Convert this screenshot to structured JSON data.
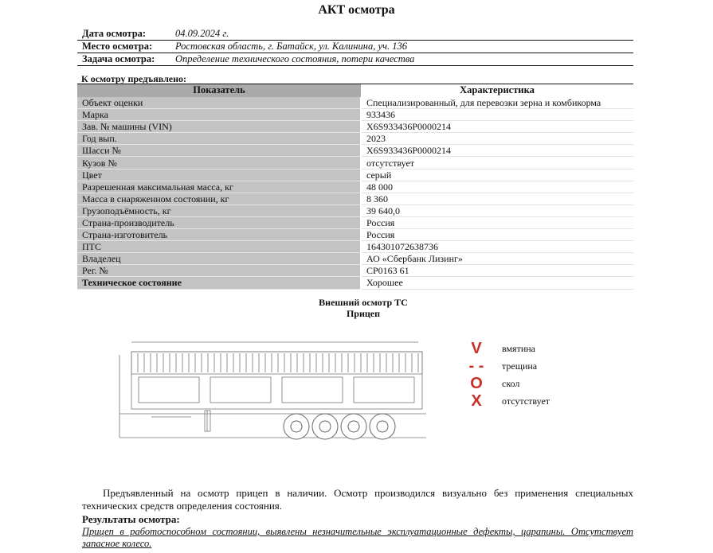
{
  "title": "АКТ осмотра",
  "info": [
    {
      "label": "Дата осмотра:",
      "value": "04.09.2024 г."
    },
    {
      "label": "Место осмотра:",
      "value": "Ростовская область, г. Батайск, ул. Калинина, уч. 136"
    },
    {
      "label": "Задача осмотра:",
      "value": "Определение технического состояния, потери качества"
    }
  ],
  "section": "К осмотру предъявлено:",
  "table": {
    "headers": [
      "Показатель",
      "Характеристика"
    ],
    "rows": [
      [
        "Объект оценки",
        "Специализированный, для перевозки зерна и комбикорма"
      ],
      [
        "Марка",
        "933436"
      ],
      [
        "Зав. № машины (VIN)",
        "X6S933436P0000214"
      ],
      [
        "Год вып.",
        "2023"
      ],
      [
        "Шасси №",
        "X6S933436P0000214"
      ],
      [
        "Кузов №",
        "отсутствует"
      ],
      [
        "Цвет",
        "серый"
      ],
      [
        "Разрешенная максимальная масса, кг",
        "48 000"
      ],
      [
        "Масса в снаряженном состоянии, кг",
        "8 360"
      ],
      [
        "Грузоподъёмность, кг",
        "39 640,0"
      ],
      [
        "Страна-производитель",
        "Россия"
      ],
      [
        "Страна-изготовитель",
        "Россия"
      ],
      [
        "ПТС",
        "164301072638736"
      ],
      [
        "Владелец",
        "АО «Сбербанк Лизинг»"
      ],
      [
        "Рег. №",
        "СР0163 61"
      ],
      [
        "Техническое состояние",
        "Хорошее"
      ]
    ]
  },
  "inspection": {
    "title": "Внешний осмотр ТС",
    "subtitle": "Прицеп"
  },
  "legend": [
    {
      "symbol": "V",
      "label": "вмятина"
    },
    {
      "symbol": "- -",
      "label": "трещина"
    },
    {
      "symbol": "O",
      "label": "скол"
    },
    {
      "symbol": "X",
      "label": "отсутствует"
    }
  ],
  "legend_color": "#c9302c",
  "paragraph": "Предъявленный на осмотр прицеп в наличии. Осмотр производился визуально без применения специальных технических средств определения состояния.",
  "results_label": "Результаты осмотра:",
  "results_text": "Прицеп в работоспособном состоянии, выявлены незначительные эксплуатационные дефекты, царапины. Отсутствует запасное колесо."
}
